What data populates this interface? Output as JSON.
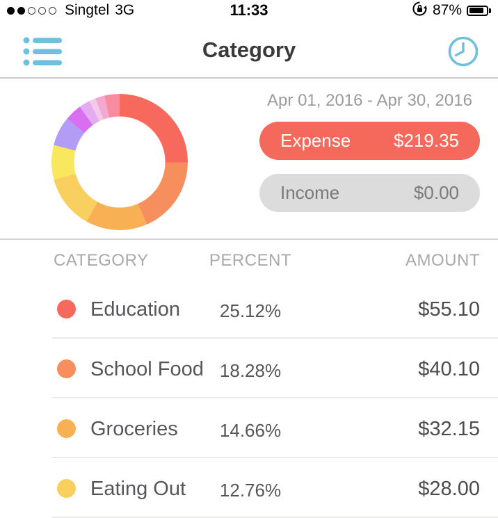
{
  "status_bar": {
    "carrier": "Singtel",
    "network": "3G",
    "time": "11:33",
    "battery_percent": "87%",
    "signal_filled_dots": 2,
    "signal_total_dots": 5
  },
  "nav": {
    "title": "Category",
    "icon_color": "#6fc0df"
  },
  "summary": {
    "date_range": "Apr 01, 2016 - Apr 30, 2016",
    "expense_label": "Expense",
    "expense_value": "$219.35",
    "expense_color": "#f5685c",
    "income_label": "Income",
    "income_value": "$0.00",
    "income_bg": "#dcdcdc"
  },
  "table": {
    "headers": {
      "category": "CATEGORY",
      "percent": "PERCENT",
      "amount": "AMOUNT"
    },
    "rows": [
      {
        "name": "Education",
        "percent": "25.12%",
        "amount": "$55.10",
        "dot_color": "#f7695c"
      },
      {
        "name": "School Food",
        "percent": "18.28%",
        "amount": "$40.10",
        "dot_color": "#f68e5e"
      },
      {
        "name": "Groceries",
        "percent": "14.66%",
        "amount": "$32.15",
        "dot_color": "#f8b055"
      },
      {
        "name": "Eating Out",
        "percent": "12.76%",
        "amount": "$28.00",
        "dot_color": "#f9cf60"
      }
    ]
  },
  "chart_data": {
    "type": "pie",
    "title": "Expense share by category, Apr 01 2016 - Apr 30 2016 (donut, clockwise from top)",
    "legend_position": "table below",
    "segments": [
      {
        "label": "Education",
        "percent": 25.12,
        "color": "#f7695c"
      },
      {
        "label": "School Food",
        "percent": 18.28,
        "color": "#f68e5e"
      },
      {
        "label": "Groceries",
        "percent": 14.66,
        "color": "#f8b055"
      },
      {
        "label": "Eating Out",
        "percent": 12.76,
        "color": "#f9cf60"
      },
      {
        "label": "(unlabeled)",
        "percent": 8.2,
        "color": "#f9e75f"
      },
      {
        "label": "(unlabeled)",
        "percent": 7.0,
        "color": "#b29cf5"
      },
      {
        "label": "(unlabeled)",
        "percent": 4.0,
        "color": "#d96ef0"
      },
      {
        "label": "(unlabeled)",
        "percent": 2.6,
        "color": "#e2abf2"
      },
      {
        "label": "(unlabeled)",
        "percent": 1.6,
        "color": "#f3c8e8"
      },
      {
        "label": "(unlabeled)",
        "percent": 2.2,
        "color": "#f5a8cf"
      },
      {
        "label": "(unlabeled)",
        "percent": 3.58,
        "color": "#f78c9f"
      }
    ]
  }
}
